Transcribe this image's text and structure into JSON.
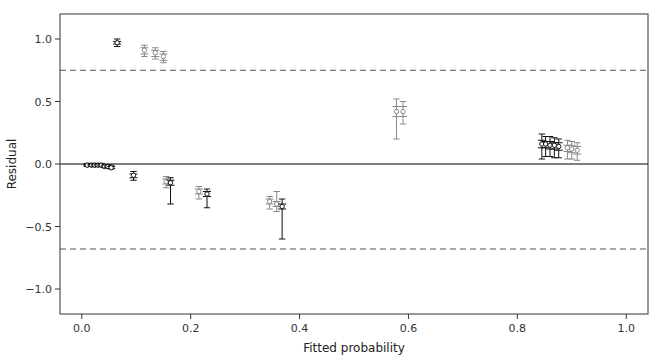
{
  "chart_data": {
    "type": "boxplot",
    "xlabel": "Fitted probability",
    "ylabel": "Residual",
    "xlim": [
      -0.04,
      1.04
    ],
    "ylim": [
      -1.2,
      1.2
    ],
    "xticks": [
      {
        "value": 0.0,
        "label": "0.0"
      },
      {
        "value": 0.2,
        "label": "0.2"
      },
      {
        "value": 0.4,
        "label": "0.4"
      },
      {
        "value": 0.6,
        "label": "0.6"
      },
      {
        "value": 0.8,
        "label": "0.8"
      },
      {
        "value": 1.0,
        "label": "1.0"
      }
    ],
    "yticks": [
      {
        "value": -1.0,
        "label": "−1.0"
      },
      {
        "value": -0.5,
        "label": "−0.5"
      },
      {
        "value": 0.0,
        "label": "0.0"
      },
      {
        "value": 0.5,
        "label": "0.5"
      },
      {
        "value": 1.0,
        "label": "1.0"
      }
    ],
    "grid": false,
    "hline_y": 0.0,
    "dashed_lines": [
      0.75,
      -0.68
    ],
    "x": [
      0.01,
      0.018,
      0.024,
      0.03,
      0.036,
      0.042,
      0.048,
      0.054,
      0.065,
      0.095,
      0.115,
      0.135,
      0.15,
      0.155,
      0.163,
      0.215,
      0.23,
      0.345,
      0.358,
      0.368,
      0.578,
      0.59,
      0.845,
      0.852,
      0.86,
      0.868,
      0.876,
      0.892,
      0.9,
      0.91
    ],
    "median": [
      -0.01,
      -0.01,
      -0.01,
      -0.01,
      -0.01,
      -0.02,
      -0.02,
      -0.03,
      0.97,
      -0.09,
      0.91,
      0.89,
      0.86,
      -0.14,
      -0.15,
      -0.22,
      -0.24,
      -0.3,
      -0.32,
      -0.34,
      0.42,
      0.42,
      0.16,
      0.16,
      0.15,
      0.15,
      0.14,
      0.13,
      0.12,
      0.11
    ],
    "q1": [
      -0.015,
      -0.015,
      -0.015,
      -0.015,
      -0.015,
      -0.025,
      -0.025,
      -0.035,
      0.96,
      -0.11,
      0.88,
      0.86,
      0.83,
      -0.16,
      -0.17,
      -0.24,
      -0.26,
      -0.32,
      -0.34,
      -0.36,
      0.38,
      0.38,
      0.13,
      0.13,
      0.12,
      0.12,
      0.11,
      0.1,
      0.09,
      0.08
    ],
    "q3": [
      -0.005,
      -0.005,
      -0.005,
      -0.005,
      -0.005,
      -0.015,
      -0.015,
      -0.02,
      0.98,
      -0.08,
      0.93,
      0.91,
      0.88,
      -0.12,
      -0.13,
      -0.2,
      -0.22,
      -0.28,
      -0.3,
      -0.32,
      0.46,
      0.46,
      0.19,
      0.18,
      0.18,
      0.17,
      0.17,
      0.15,
      0.15,
      0.14
    ],
    "whisker_lo": [
      -0.02,
      -0.02,
      -0.02,
      -0.02,
      -0.02,
      -0.03,
      -0.03,
      -0.04,
      0.94,
      -0.13,
      0.86,
      0.84,
      0.81,
      -0.19,
      -0.32,
      -0.28,
      -0.35,
      -0.36,
      -0.38,
      -0.6,
      0.2,
      0.32,
      0.04,
      0.06,
      0.06,
      0.05,
      0.05,
      0.04,
      0.04,
      0.03
    ],
    "whisker_hi": [
      0.005,
      0.005,
      0.005,
      0.005,
      0.005,
      -0.005,
      -0.005,
      -0.01,
      1.0,
      -0.06,
      0.95,
      0.93,
      0.9,
      -0.1,
      -0.11,
      -0.18,
      -0.2,
      -0.26,
      -0.22,
      -0.28,
      0.52,
      0.5,
      0.24,
      0.22,
      0.22,
      0.21,
      0.2,
      0.19,
      0.18,
      0.17
    ],
    "colors": [
      "#111111",
      "#111111",
      "#111111",
      "#111111",
      "#111111",
      "#111111",
      "#111111",
      "#111111",
      "#111111",
      "#111111",
      "#888888",
      "#888888",
      "#888888",
      "#888888",
      "#111111",
      "#888888",
      "#111111",
      "#888888",
      "#888888",
      "#111111",
      "#888888",
      "#888888",
      "#111111",
      "#111111",
      "#111111",
      "#111111",
      "#111111",
      "#888888",
      "#888888",
      "#888888"
    ]
  }
}
